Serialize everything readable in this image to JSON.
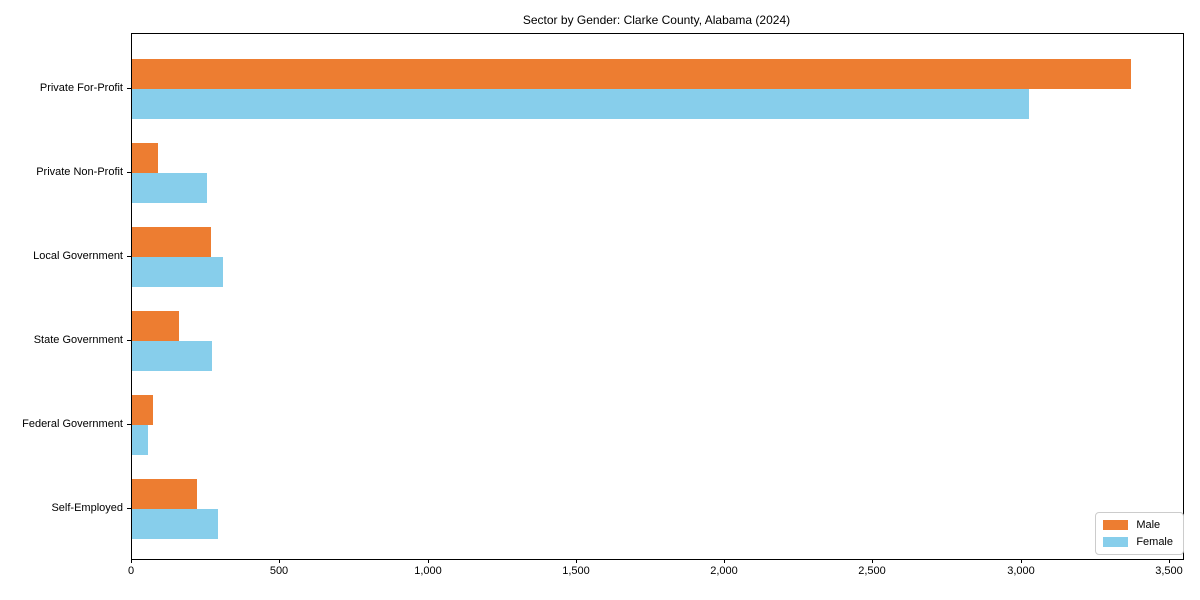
{
  "chart_data": {
    "type": "bar",
    "orientation": "horizontal",
    "title": "Sector by Gender: Clarke County, Alabama (2024)",
    "categories": [
      "Private For-Profit",
      "Private Non-Profit",
      "Local Government",
      "State Government",
      "Federal Government",
      "Self-Employed"
    ],
    "series": [
      {
        "name": "Male",
        "color": "#ed7d31",
        "values": [
          3370,
          88,
          266,
          158,
          72,
          220
        ]
      },
      {
        "name": "Female",
        "color": "#87ceeb",
        "values": [
          3025,
          253,
          306,
          270,
          53,
          290
        ]
      }
    ],
    "xlabel": "",
    "ylabel": "",
    "x_ticks": [
      0,
      500,
      1000,
      1500,
      2000,
      2500,
      3000,
      3500
    ],
    "x_tick_labels": [
      "0",
      "500",
      "1,000",
      "1,500",
      "2,000",
      "2,500",
      "3,000",
      "3,500"
    ],
    "xlim": [
      0,
      3544
    ],
    "grid": false,
    "legend_position": "lower right",
    "spine_color": "#000000",
    "background_color": "#ffffff"
  }
}
